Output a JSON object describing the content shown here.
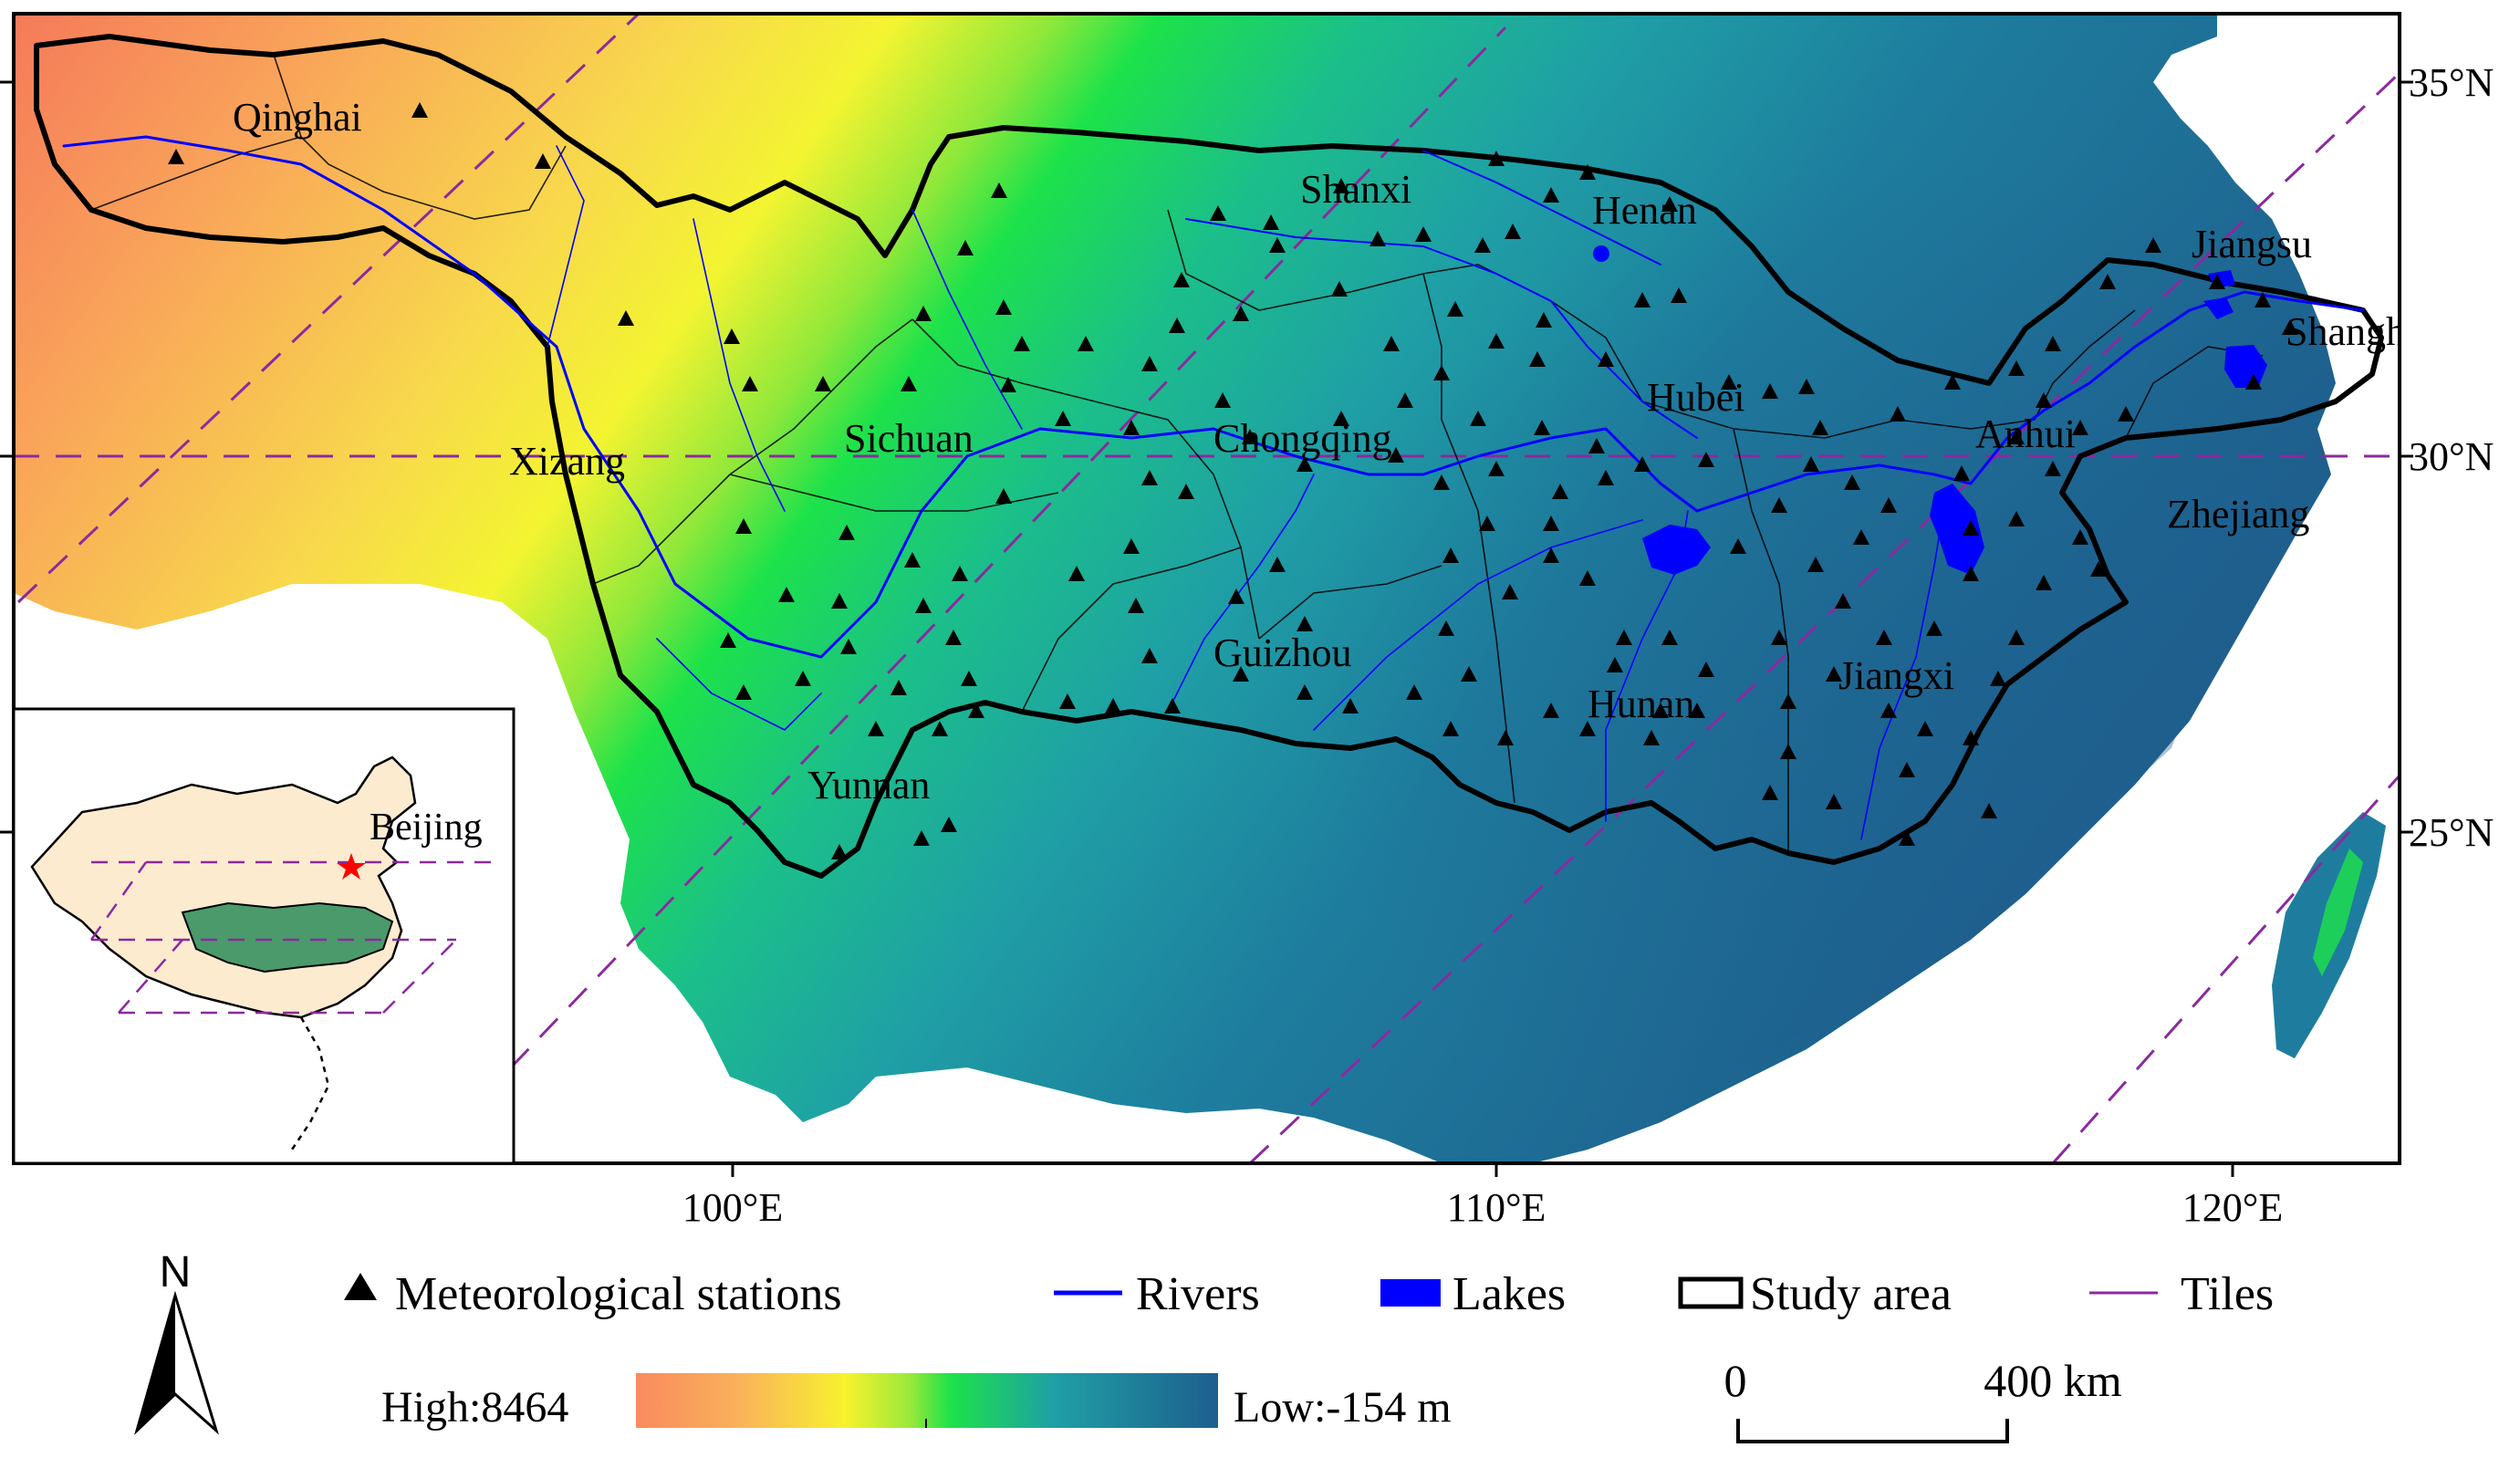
{
  "map": {
    "graticule": {
      "longitude_labels": [
        "100°E",
        "110°E",
        "120°E"
      ],
      "latitude_labels": [
        "35°N",
        "30°N",
        "25°N"
      ]
    },
    "province_labels": [
      "Qinghai",
      "Shanxi",
      "Henan",
      "Jiangsu",
      "Shanghai",
      "Hubei",
      "Anhui",
      "Xizang",
      "Sichuan",
      "Chongqing",
      "Zhejiang",
      "Guizhou",
      "Hunan",
      "Jiangxi",
      "Yunnan"
    ],
    "inset": {
      "capital_label": "Beijing"
    },
    "colors": {
      "elevation_high": "#f98a5e",
      "elevation_mid": "#f7f22e",
      "elevation_green": "#1de24a",
      "elevation_teal": "#1f9fa6",
      "elevation_low": "#1e5f8e",
      "rivers": "#0000ff",
      "lakes": "#0000ff",
      "tiles": "#8b2a9e",
      "study_area_outline": "#000000",
      "inset_land": "#fdebd0",
      "inset_basin": "#4a9a6b",
      "capital_star": "#ff0000"
    }
  },
  "legend": {
    "north_arrow_label": "N",
    "items": [
      {
        "symbol": "triangle-icon",
        "label": "Meteorological stations"
      },
      {
        "symbol": "line-icon",
        "label": "Rivers"
      },
      {
        "symbol": "filled-rect-icon",
        "label": "Lakes"
      },
      {
        "symbol": "outline-rect-icon",
        "label": "Study area"
      },
      {
        "symbol": "line-icon",
        "label": "Tiles"
      }
    ],
    "colorbar": {
      "high_label": "High:8464",
      "low_label": "Low:-154 m"
    },
    "scale_bar": {
      "start_label": "0",
      "end_label": "400 km"
    }
  }
}
